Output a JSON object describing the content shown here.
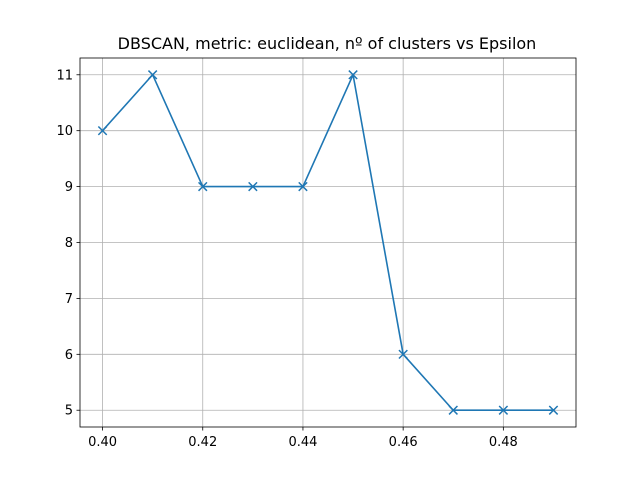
{
  "chart_data": {
    "type": "line",
    "title": "DBSCAN, metric: euclidean, nº of clusters vs Epsilon",
    "xlabel": "",
    "ylabel": "",
    "x": [
      0.4,
      0.41,
      0.42,
      0.43,
      0.44,
      0.45,
      0.46,
      0.47,
      0.48,
      0.49
    ],
    "series": [
      {
        "values": [
          10,
          11,
          9,
          9,
          9,
          11,
          6,
          5,
          5,
          5
        ],
        "color": "#1f77b4",
        "marker": "x"
      }
    ],
    "xlim": [
      0.3955,
      0.4945
    ],
    "ylim": [
      4.7,
      11.3
    ],
    "xticks": [
      "0.40",
      "0.42",
      "0.44",
      "0.46",
      "0.48"
    ],
    "xtick_values": [
      0.4,
      0.42,
      0.44,
      0.46,
      0.48
    ],
    "yticks": [
      "5",
      "6",
      "7",
      "8",
      "9",
      "10",
      "11"
    ],
    "ytick_values": [
      5,
      6,
      7,
      8,
      9,
      10,
      11
    ],
    "grid": true,
    "legend": "none"
  }
}
